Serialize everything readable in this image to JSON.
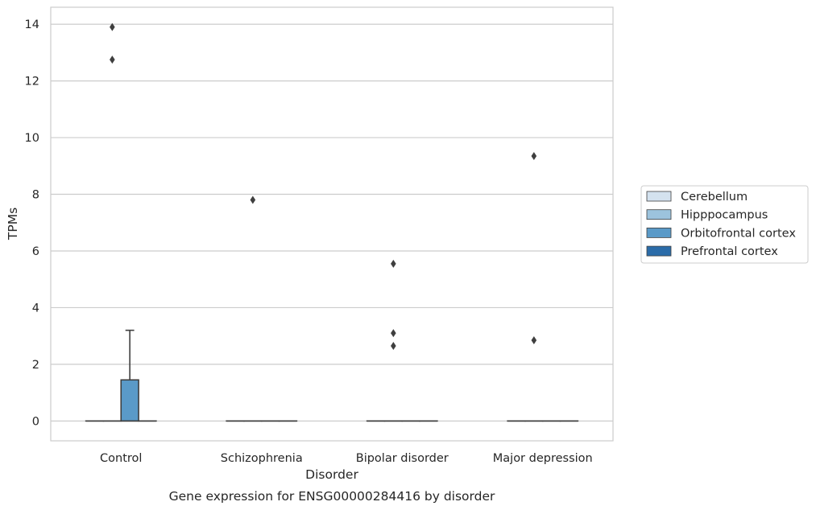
{
  "chart_data": {
    "type": "box",
    "xlabel": "Disorder",
    "ylabel": "TPMs",
    "caption": "Gene expression for ENSG00000284416 by disorder",
    "ylim": [
      -0.7,
      14.6
    ],
    "yticks": [
      0,
      2,
      4,
      6,
      8,
      10,
      12,
      14
    ],
    "categories": [
      "Control",
      "Schizophrenia",
      "Bipolar disorder",
      "Major depression"
    ],
    "grid": "horizontal",
    "legend_position": "right",
    "series": [
      {
        "name": "Cerebellum",
        "color": "#d4e2ef",
        "boxes": [
          {
            "q1": 0,
            "median": 0,
            "q3": 0,
            "whislo": 0,
            "whishi": 0,
            "fliers": []
          },
          {
            "q1": 0,
            "median": 0,
            "q3": 0,
            "whislo": 0,
            "whishi": 0,
            "fliers": []
          },
          {
            "q1": 0,
            "median": 0,
            "q3": 0,
            "whislo": 0,
            "whishi": 0,
            "fliers": []
          },
          {
            "q1": 0,
            "median": 0,
            "q3": 0,
            "whislo": 0,
            "whishi": 0,
            "fliers": []
          }
        ]
      },
      {
        "name": "Hipppocampus",
        "color": "#9cc3dd",
        "boxes": [
          {
            "q1": 0,
            "median": 0,
            "q3": 0,
            "whislo": 0,
            "whishi": 0,
            "fliers": [
              13.9,
              12.75
            ]
          },
          {
            "q1": 0,
            "median": 0,
            "q3": 0,
            "whislo": 0,
            "whishi": 0,
            "fliers": [
              7.8
            ]
          },
          {
            "q1": 0,
            "median": 0,
            "q3": 0,
            "whislo": 0,
            "whishi": 0,
            "fliers": [
              5.55,
              3.1,
              2.65
            ]
          },
          {
            "q1": 0,
            "median": 0,
            "q3": 0,
            "whislo": 0,
            "whishi": 0,
            "fliers": [
              9.35,
              2.85
            ]
          }
        ]
      },
      {
        "name": "Orbitofrontal cortex",
        "color": "#5a9ac8",
        "boxes": [
          {
            "q1": 0,
            "median": 0,
            "q3": 1.45,
            "whislo": 0,
            "whishi": 3.2,
            "fliers": []
          },
          {
            "q1": 0,
            "median": 0,
            "q3": 0,
            "whislo": 0,
            "whishi": 0,
            "fliers": []
          },
          {
            "q1": 0,
            "median": 0,
            "q3": 0,
            "whislo": 0,
            "whishi": 0,
            "fliers": []
          },
          {
            "q1": 0,
            "median": 0,
            "q3": 0,
            "whislo": 0,
            "whishi": 0,
            "fliers": []
          }
        ]
      },
      {
        "name": "Prefrontal cortex",
        "color": "#2b6ca9",
        "boxes": [
          {
            "q1": 0,
            "median": 0,
            "q3": 0,
            "whislo": 0,
            "whishi": 0,
            "fliers": []
          },
          {
            "q1": 0,
            "median": 0,
            "q3": 0,
            "whislo": 0,
            "whishi": 0,
            "fliers": []
          },
          {
            "q1": 0,
            "median": 0,
            "q3": 0,
            "whislo": 0,
            "whishi": 0,
            "fliers": []
          },
          {
            "q1": 0,
            "median": 0,
            "q3": 0,
            "whislo": 0,
            "whishi": 0,
            "fliers": []
          }
        ]
      }
    ]
  }
}
